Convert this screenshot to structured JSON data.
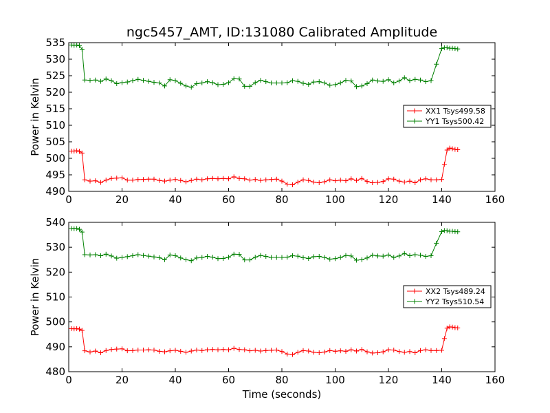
{
  "figure": {
    "title": "ngc5457_AMT, ID:131080 Calibrated Amplitude",
    "xlabel": "Time (seconds)"
  },
  "chart_data": [
    {
      "type": "line",
      "title": "ngc5457_AMT, ID:131080 Calibrated Amplitude",
      "xlabel": "",
      "ylabel": "Power in Kelvin",
      "xlim": [
        0,
        160
      ],
      "ylim": [
        490,
        535
      ],
      "xticks": [
        0,
        20,
        40,
        60,
        80,
        100,
        120,
        140,
        160
      ],
      "yticks": [
        490,
        495,
        500,
        505,
        510,
        515,
        520,
        525,
        530,
        535
      ],
      "legend_position": "center-right",
      "grid": false,
      "x": [
        1,
        2,
        3,
        4,
        5,
        6,
        8,
        10,
        12,
        14,
        16,
        18,
        20,
        22,
        24,
        26,
        28,
        30,
        32,
        34,
        36,
        38,
        40,
        42,
        44,
        46,
        48,
        50,
        52,
        54,
        56,
        58,
        60,
        62,
        64,
        66,
        68,
        70,
        72,
        74,
        76,
        78,
        80,
        82,
        84,
        86,
        88,
        90,
        92,
        94,
        96,
        98,
        100,
        102,
        104,
        106,
        108,
        110,
        112,
        114,
        116,
        118,
        120,
        122,
        124,
        126,
        128,
        130,
        132,
        134,
        136,
        138,
        140,
        141,
        142,
        143,
        144,
        145,
        146
      ],
      "series": [
        {
          "name": "XX1 Tsys499.58",
          "color": "#ff0000",
          "values": [
            502.2,
            502.2,
            502.3,
            502.1,
            501.6,
            493.5,
            493.1,
            493.2,
            492.7,
            493.4,
            493.9,
            494.0,
            494.1,
            493.4,
            493.4,
            493.6,
            493.6,
            493.7,
            493.7,
            493.3,
            493.1,
            493.4,
            493.6,
            493.3,
            492.9,
            493.3,
            493.7,
            493.5,
            493.8,
            493.9,
            493.8,
            493.9,
            493.8,
            494.4,
            493.9,
            493.8,
            493.4,
            493.6,
            493.3,
            493.5,
            493.6,
            493.7,
            493.1,
            492.2,
            492.0,
            492.8,
            493.5,
            493.3,
            492.8,
            492.6,
            492.9,
            493.5,
            493.2,
            493.4,
            493.2,
            493.8,
            493.3,
            493.9,
            493.0,
            492.6,
            492.7,
            493.0,
            493.8,
            493.7,
            493.1,
            492.8,
            493.1,
            492.6,
            493.5,
            493.8,
            493.5,
            493.5,
            493.6,
            498.2,
            502.5,
            503.1,
            502.9,
            502.7,
            502.6
          ]
        },
        {
          "name": "YY1 Tsys500.42",
          "color": "#008000",
          "values": [
            534.3,
            534.2,
            534.3,
            534.1,
            533.0,
            523.7,
            523.6,
            523.7,
            523.3,
            524.0,
            523.5,
            522.6,
            522.9,
            523.1,
            523.5,
            523.9,
            523.6,
            523.3,
            523.0,
            522.8,
            521.9,
            523.8,
            523.5,
            522.7,
            521.9,
            521.5,
            522.6,
            522.8,
            523.2,
            522.9,
            522.3,
            522.4,
            522.9,
            524.1,
            524.0,
            521.8,
            521.8,
            522.9,
            523.6,
            523.2,
            522.8,
            522.8,
            522.8,
            522.9,
            523.5,
            523.3,
            522.7,
            522.4,
            523.1,
            523.2,
            522.8,
            522.1,
            522.3,
            522.8,
            523.6,
            523.4,
            521.7,
            521.9,
            522.6,
            523.7,
            523.4,
            523.3,
            523.8,
            522.8,
            523.4,
            524.4,
            523.5,
            523.9,
            523.7,
            523.2,
            523.5,
            528.5,
            533.2,
            533.5,
            533.5,
            533.3,
            533.3,
            533.2,
            533.1
          ]
        }
      ]
    },
    {
      "type": "line",
      "title": "",
      "xlabel": "Time (seconds)",
      "ylabel": "Power in Kelvin",
      "xlim": [
        0,
        160
      ],
      "ylim": [
        480,
        540
      ],
      "xticks": [
        0,
        20,
        40,
        60,
        80,
        100,
        120,
        140,
        160
      ],
      "yticks": [
        480,
        490,
        500,
        510,
        520,
        530,
        540
      ],
      "legend_position": "center-right",
      "grid": false,
      "x": [
        1,
        2,
        3,
        4,
        5,
        6,
        8,
        10,
        12,
        14,
        16,
        18,
        20,
        22,
        24,
        26,
        28,
        30,
        32,
        34,
        36,
        38,
        40,
        42,
        44,
        46,
        48,
        50,
        52,
        54,
        56,
        58,
        60,
        62,
        64,
        66,
        68,
        70,
        72,
        74,
        76,
        78,
        80,
        82,
        84,
        86,
        88,
        90,
        92,
        94,
        96,
        98,
        100,
        102,
        104,
        106,
        108,
        110,
        112,
        114,
        116,
        118,
        120,
        122,
        124,
        126,
        128,
        130,
        132,
        134,
        136,
        138,
        140,
        141,
        142,
        143,
        144,
        145,
        146
      ],
      "series": [
        {
          "name": "XX2 Tsys489.24",
          "color": "#ff0000",
          "values": [
            497.3,
            497.2,
            497.3,
            497.1,
            496.6,
            488.4,
            487.9,
            488.3,
            487.6,
            488.5,
            488.9,
            489.1,
            489.2,
            488.4,
            488.5,
            488.7,
            488.7,
            488.8,
            488.7,
            488.2,
            488.0,
            488.4,
            488.6,
            488.2,
            487.8,
            488.3,
            488.7,
            488.5,
            488.8,
            488.9,
            488.8,
            488.9,
            488.8,
            489.4,
            488.9,
            488.8,
            488.4,
            488.6,
            488.3,
            488.5,
            488.6,
            488.7,
            488.1,
            487.1,
            486.9,
            487.8,
            488.5,
            488.3,
            487.8,
            487.6,
            487.9,
            488.5,
            488.2,
            488.4,
            488.2,
            488.8,
            488.3,
            488.9,
            488.0,
            487.5,
            487.6,
            488.0,
            488.8,
            488.7,
            488.1,
            487.8,
            488.1,
            487.6,
            488.5,
            488.8,
            488.5,
            488.5,
            488.6,
            493.3,
            497.5,
            498.0,
            497.9,
            497.7,
            497.6
          ]
        },
        {
          "name": "YY2 Tsys510.54",
          "color": "#008000",
          "values": [
            537.5,
            537.4,
            537.5,
            537.2,
            536.1,
            527.0,
            526.9,
            527.0,
            526.6,
            527.2,
            526.5,
            525.6,
            525.9,
            526.2,
            526.6,
            527.0,
            526.7,
            526.4,
            526.1,
            525.8,
            525.0,
            526.9,
            526.6,
            525.7,
            525.0,
            524.6,
            525.7,
            525.9,
            526.3,
            526.0,
            525.4,
            525.5,
            526.0,
            527.2,
            527.1,
            524.9,
            524.9,
            526.0,
            526.7,
            526.3,
            525.9,
            525.9,
            525.9,
            526.0,
            526.6,
            526.4,
            525.8,
            525.5,
            526.2,
            526.3,
            525.9,
            525.2,
            525.4,
            525.9,
            526.7,
            526.5,
            524.8,
            525.0,
            525.7,
            526.8,
            526.5,
            526.4,
            526.9,
            525.9,
            526.5,
            527.5,
            526.6,
            527.0,
            526.8,
            526.3,
            526.6,
            531.6,
            536.3,
            536.7,
            536.6,
            536.4,
            536.4,
            536.3,
            536.2
          ]
        }
      ]
    }
  ]
}
